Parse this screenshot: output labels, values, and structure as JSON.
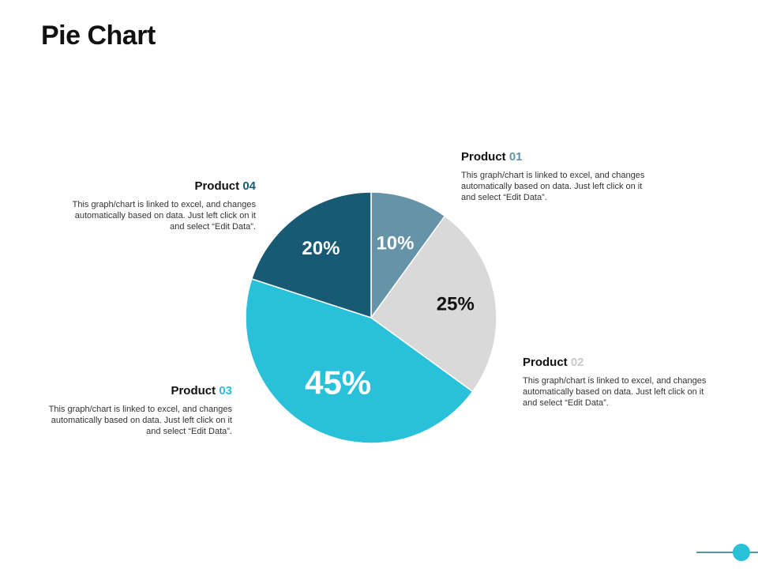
{
  "title": "Pie Chart",
  "chart_data": {
    "type": "pie",
    "title": "",
    "slices": [
      {
        "name": "Product 01",
        "value": 10,
        "label": "10%",
        "color": "#6593a8",
        "label_color": "#ffffff"
      },
      {
        "name": "Product 02",
        "value": 25,
        "label": "25%",
        "color": "#d9d9d9",
        "label_color": "#111111"
      },
      {
        "name": "Product 03",
        "value": 45,
        "label": "45%",
        "color": "#29c0d9",
        "label_color": "#ffffff"
      },
      {
        "name": "Product 04",
        "value": 20,
        "label": "20%",
        "color": "#185a74",
        "label_color": "#ffffff"
      }
    ]
  },
  "callouts": {
    "p01": {
      "word": "Product",
      "num": "01",
      "num_color": "#6593a8",
      "text": "This graph/chart is linked to excel, and changes automatically based on data. Just left click on it and select “Edit Data”."
    },
    "p02": {
      "word": "Product",
      "num": "02",
      "num_color": "#c9c9c9",
      "text": "This graph/chart is linked to excel, and changes automatically based on data. Just left click on it and select “Edit Data”."
    },
    "p03": {
      "word": "Product",
      "num": "03",
      "num_color": "#29c0d9",
      "text": "This graph/chart is linked to excel, and changes automatically based on data. Just left click on it and select “Edit Data”."
    },
    "p04": {
      "word": "Product",
      "num": "04",
      "num_color": "#185a74",
      "text": "This graph/chart is linked to excel, and changes automatically based on data. Just left click on it and select “Edit Data”."
    }
  }
}
